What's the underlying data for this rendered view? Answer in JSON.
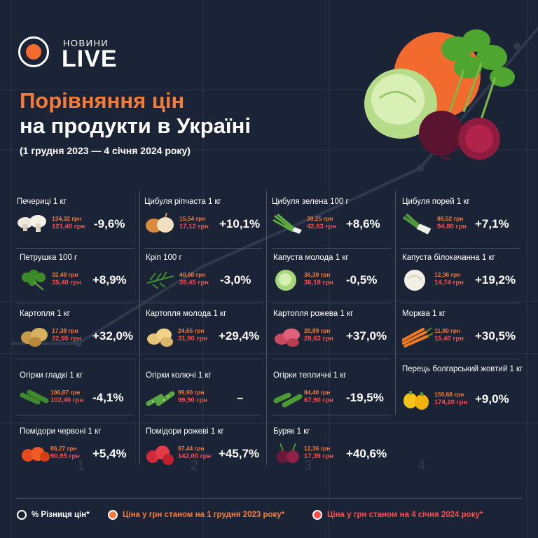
{
  "brand": {
    "small": "НОВИНИ",
    "big": "LIVE"
  },
  "title_line1": "Порівняння цін",
  "title_line2": "на продукти в Україні",
  "subtitle": "(1 грудня 2023 — 4 січня 2024 року)",
  "colors": {
    "background": "#1b2436",
    "orange": "#f57b3a",
    "red": "#ff4b4b",
    "white": "#ffffff"
  },
  "grid_labels": [
    "1",
    "2",
    "3",
    "4"
  ],
  "products": [
    {
      "name": "Печериці 1 кг",
      "old": "134,32 грн",
      "new": "121,40 грн",
      "pct": "-9,6%",
      "icon": "mushrooms-icon"
    },
    {
      "name": "Цибуля ріпчаста 1 кг",
      "old": "15,54 грн",
      "new": "17,12 грн",
      "pct": "+10,1%",
      "icon": "onion-icon"
    },
    {
      "name": "Цибуля зелена 100 г",
      "old": "39,25 грн",
      "new": "42,63 грн",
      "pct": "+8,6%",
      "icon": "green-onion-icon"
    },
    {
      "name": "Цибуля порей 1 кг",
      "old": "88,52 грн",
      "new": "94,80 грн",
      "pct": "+7,1%",
      "icon": "leek-icon"
    },
    {
      "name": "Петрушка 100 г",
      "old": "32,49 грн",
      "new": "35,40 грн",
      "pct": "+8,9%",
      "icon": "parsley-icon"
    },
    {
      "name": "Кріп 100 г",
      "old": "40,68 грн",
      "new": "39,45 грн",
      "pct": "-3,0%",
      "icon": "dill-icon"
    },
    {
      "name": "Капуста молода 1 кг",
      "old": "36,39 грн",
      "new": "36,18 грн",
      "pct": "-0,5%",
      "icon": "young-cabbage-icon"
    },
    {
      "name": "Капуста білокачанна 1 кг",
      "old": "12,36 грн",
      "new": "14,74 грн",
      "pct": "+19,2%",
      "icon": "white-cabbage-icon"
    },
    {
      "name": "Картопля 1 кг",
      "old": "17,38 грн",
      "new": "22,95 грн",
      "pct": "+32,0%",
      "icon": "potato-icon"
    },
    {
      "name": "Картопля молода 1 кг",
      "old": "24,65 грн",
      "new": "31,90 грн",
      "pct": "+29,4%",
      "icon": "young-potato-icon"
    },
    {
      "name": "Картопля рожева 1 кг",
      "old": "20,89 грн",
      "new": "28,63 грн",
      "pct": "+37,0%",
      "icon": "pink-potato-icon"
    },
    {
      "name": "Морква 1 кг",
      "old": "11,80 грн",
      "new": "15,40 грн",
      "pct": "+30,5%",
      "icon": "carrot-icon"
    },
    {
      "name": "Огірки гладкі 1 кг",
      "old": "106,87 грн",
      "new": "102,40 грн",
      "pct": "-4,1%",
      "icon": "smooth-cucumber-icon"
    },
    {
      "name": "Огірки колючі 1 кг",
      "old": "99,90 грн",
      "new": "99,90 грн",
      "pct": "–",
      "icon": "prickly-cucumber-icon"
    },
    {
      "name": "Огірки тепличні 1 кг",
      "old": "84,40 грн",
      "new": "67,90 грн",
      "pct": "-19,5%",
      "icon": "greenhouse-cucumber-icon"
    },
    {
      "name": "Перець болгарський жовтий 1 кг",
      "old": "159,68 грн",
      "new": "174,20 грн",
      "pct": "+9,0%",
      "icon": "yellow-pepper-icon"
    },
    {
      "name": "Помідори червоні 1 кг",
      "old": "86,27 грн",
      "new": "90,95 грн",
      "pct": "+5,4%",
      "icon": "red-tomato-icon"
    },
    {
      "name": "Помідори рожеві 1 кг",
      "old": "97,44 грн",
      "new": "142,00 грн",
      "pct": "+45,7%",
      "icon": "pink-tomato-icon"
    },
    {
      "name": "Буряк 1 кг",
      "old": "12,36 грн",
      "new": "17,39 грн",
      "pct": "+40,6%",
      "icon": "beet-icon"
    }
  ],
  "legend": {
    "diff": "% Різниця цін*",
    "dec": "Ціна у грн станом на 1 грудня 2023 року*",
    "jan": "Ціна у грн станом на 4 січня 2024 року*"
  }
}
